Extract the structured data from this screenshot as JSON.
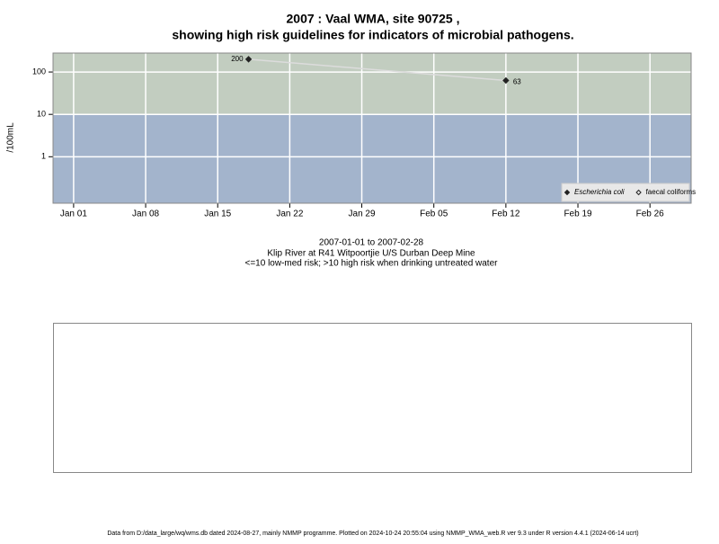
{
  "chart_data": {
    "type": "line",
    "title": [
      "2007 : Vaal WMA, site 90725 ,",
      "showing high risk guidelines for indicators of microbial pathogens."
    ],
    "y_label": "/100mL",
    "subtitle": [
      "2007-01-01 to 2007-02-28",
      "Klip River at R41 Witpoortjie U/S Durban Deep Mine",
      "<=10 low-med risk; >10 high risk when drinking untreated water"
    ],
    "footer": "Data from D:/data_large/wq/wms.db dated 2024-08-27, mainly NMMP programme. Plotted on 2024-10-24 20:55:04 using NMMP_WMA_web.R ver 9.3 under R version 4.4.1 (2024-06-14 ucrt)",
    "x": [
      "2007-01-18",
      "2007-02-12"
    ],
    "series": [
      {
        "name": "Escherichia coli",
        "color": "#222222",
        "line_color": "#dcdcdc",
        "marker": "filled-diamond",
        "values": [
          200,
          63
        ]
      },
      {
        "name": "faecal coliforms",
        "color": "#222222",
        "marker": "open-diamond",
        "values": [
          null,
          null
        ]
      }
    ],
    "log_y": true,
    "ylim": [
      0.08,
      280
    ],
    "yticks": [
      1,
      10,
      100
    ],
    "xlim": [
      "2006-12-30",
      "2007-03-02"
    ],
    "xticks": [
      {
        "value": "2007-01-01",
        "label": "Jan 01"
      },
      {
        "value": "2007-01-08",
        "label": "Jan 08"
      },
      {
        "value": "2007-01-15",
        "label": "Jan 15"
      },
      {
        "value": "2007-01-22",
        "label": "Jan 22"
      },
      {
        "value": "2007-01-29",
        "label": "Jan 29"
      },
      {
        "value": "2007-02-05",
        "label": "Feb 05"
      },
      {
        "value": "2007-02-12",
        "label": "Feb 12"
      },
      {
        "value": "2007-02-19",
        "label": "Feb 19"
      },
      {
        "value": "2007-02-26",
        "label": "Feb 26"
      }
    ],
    "guideline": 10,
    "band_colors": {
      "above": "#c2cdc0",
      "below": "#a3b4cc"
    },
    "grid": true,
    "legend_position": "bottom-right"
  }
}
